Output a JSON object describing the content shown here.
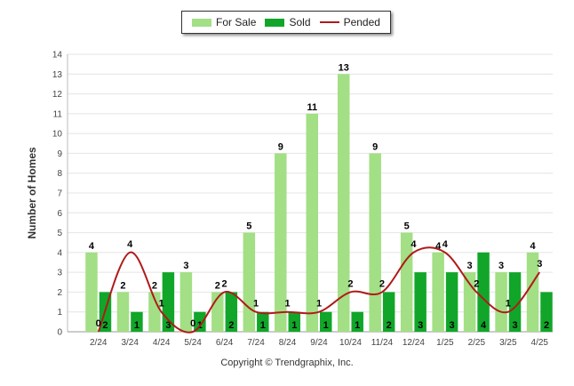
{
  "chart_data": {
    "type": "bar",
    "categories": [
      "2/24",
      "3/24",
      "4/24",
      "5/24",
      "6/24",
      "7/24",
      "8/24",
      "9/24",
      "10/24",
      "11/24",
      "12/24",
      "1/25",
      "2/25",
      "3/25",
      "4/25"
    ],
    "series": [
      {
        "name": "For Sale",
        "type": "bar",
        "color": "#a3df85",
        "values": [
          4,
          2,
          2,
          3,
          2,
          5,
          9,
          11,
          13,
          9,
          5,
          4,
          3,
          3,
          4
        ]
      },
      {
        "name": "Sold",
        "type": "bar",
        "color": "#11a629",
        "values": [
          2,
          1,
          3,
          1,
          2,
          1,
          1,
          1,
          1,
          2,
          3,
          3,
          4,
          3,
          2
        ]
      },
      {
        "name": "Pended",
        "type": "line",
        "color": "#b01a1a",
        "values": [
          0,
          4,
          1,
          0,
          2,
          1,
          1,
          1,
          2,
          2,
          4,
          4,
          2,
          1,
          3
        ]
      }
    ],
    "xlabel": "",
    "ylabel": "Number of Homes",
    "ylim": [
      0,
      14
    ],
    "yticks": [
      0,
      1,
      2,
      3,
      4,
      5,
      6,
      7,
      8,
      9,
      10,
      11,
      12,
      13,
      14
    ],
    "grid": true,
    "legend_position": "top-center"
  },
  "footer": {
    "copyright": "Copyright © Trendgraphix, Inc."
  }
}
